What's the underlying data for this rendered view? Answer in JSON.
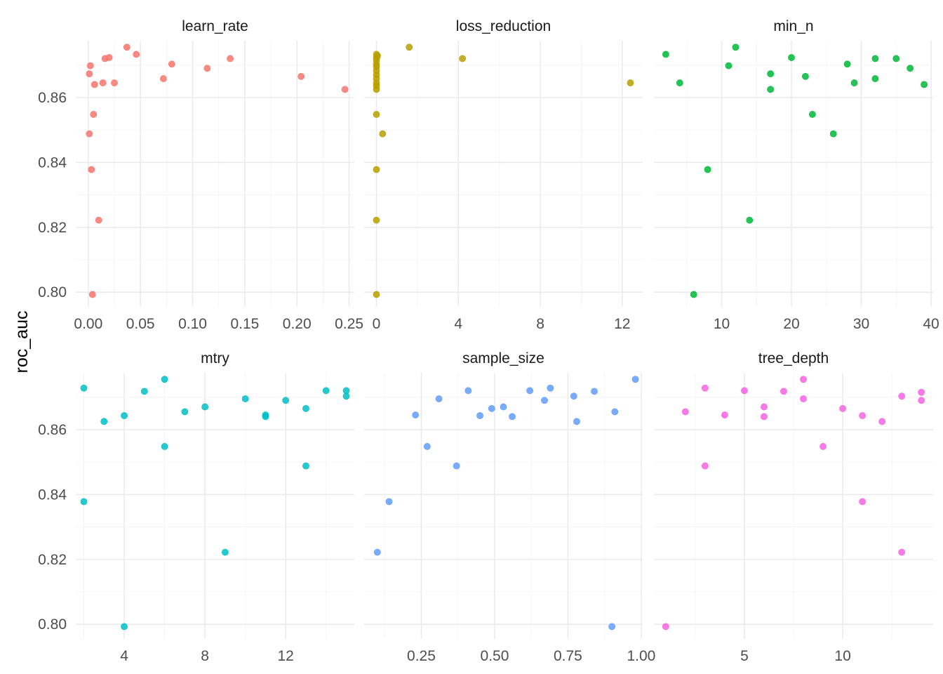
{
  "chart_data": {
    "type": "scatter",
    "ylabel": "roc_auc",
    "y_ticks": [
      "0.80",
      "0.82",
      "0.84",
      "0.86"
    ],
    "y_tick_values": [
      0.8,
      0.82,
      0.84,
      0.86
    ],
    "ylim": [
      0.7955,
      0.8775
    ],
    "grid": true,
    "legend": "none",
    "panels": [
      {
        "name": "learn_rate",
        "color": "#F8766D",
        "xlim": [
          -0.012,
          0.255
        ],
        "x_ticks": [
          "0.00",
          "0.05",
          "0.10",
          "0.15",
          "0.20",
          "0.25"
        ],
        "x_tick_values": [
          0,
          0.05,
          0.1,
          0.15,
          0.2,
          0.25
        ],
        "points": [
          {
            "x": 0.001,
            "y": 0.8673
          },
          {
            "x": 0.002,
            "y": 0.8698
          },
          {
            "x": 0.001,
            "y": 0.8488
          },
          {
            "x": 0.003,
            "y": 0.8378
          },
          {
            "x": 0.004,
            "y": 0.7993
          },
          {
            "x": 0.005,
            "y": 0.8548
          },
          {
            "x": 0.006,
            "y": 0.864
          },
          {
            "x": 0.01,
            "y": 0.8222
          },
          {
            "x": 0.014,
            "y": 0.8645
          },
          {
            "x": 0.016,
            "y": 0.872
          },
          {
            "x": 0.02,
            "y": 0.8723
          },
          {
            "x": 0.025,
            "y": 0.8645
          },
          {
            "x": 0.037,
            "y": 0.8755
          },
          {
            "x": 0.046,
            "y": 0.8733
          },
          {
            "x": 0.072,
            "y": 0.8658
          },
          {
            "x": 0.08,
            "y": 0.8703
          },
          {
            "x": 0.114,
            "y": 0.869
          },
          {
            "x": 0.136,
            "y": 0.872
          },
          {
            "x": 0.204,
            "y": 0.8665
          },
          {
            "x": 0.246,
            "y": 0.8625
          }
        ]
      },
      {
        "name": "loss_reduction",
        "color": "#B79F00",
        "xlim": [
          -0.6,
          13.0
        ],
        "x_ticks": [
          "0",
          "4",
          "8",
          "12"
        ],
        "x_tick_values": [
          0,
          4,
          8,
          12
        ],
        "points": [
          {
            "x": 0.0,
            "y": 0.8733
          },
          {
            "x": 0.0,
            "y": 0.8723
          },
          {
            "x": 0.0,
            "y": 0.8715
          },
          {
            "x": 0.0,
            "y": 0.8703
          },
          {
            "x": 0.0,
            "y": 0.8695
          },
          {
            "x": 0.0,
            "y": 0.8683
          },
          {
            "x": 0.0,
            "y": 0.867
          },
          {
            "x": 0.0,
            "y": 0.8658
          },
          {
            "x": 0.0,
            "y": 0.8645
          },
          {
            "x": 0.0,
            "y": 0.8636
          },
          {
            "x": 0.0,
            "y": 0.8625
          },
          {
            "x": 0.0,
            "y": 0.8548
          },
          {
            "x": 0.0,
            "y": 0.8378
          },
          {
            "x": 0.0,
            "y": 0.8222
          },
          {
            "x": 0.0,
            "y": 0.7993
          },
          {
            "x": 0.05,
            "y": 0.8728
          },
          {
            "x": 0.3,
            "y": 0.8488
          },
          {
            "x": 1.6,
            "y": 0.8755
          },
          {
            "x": 4.2,
            "y": 0.872
          },
          {
            "x": 12.4,
            "y": 0.8645
          }
        ]
      },
      {
        "name": "min_n",
        "color": "#00BA38",
        "xlim": [
          0.3,
          40.3
        ],
        "x_ticks": [
          "10",
          "20",
          "30",
          "40"
        ],
        "x_tick_values": [
          10,
          20,
          30,
          40
        ],
        "points": [
          {
            "x": 2,
            "y": 0.8733
          },
          {
            "x": 4,
            "y": 0.8645
          },
          {
            "x": 6,
            "y": 0.7993
          },
          {
            "x": 8,
            "y": 0.8378
          },
          {
            "x": 11,
            "y": 0.8698
          },
          {
            "x": 12,
            "y": 0.8755
          },
          {
            "x": 14,
            "y": 0.8222
          },
          {
            "x": 17,
            "y": 0.8673
          },
          {
            "x": 17,
            "y": 0.8625
          },
          {
            "x": 20,
            "y": 0.8723
          },
          {
            "x": 22,
            "y": 0.8665
          },
          {
            "x": 23,
            "y": 0.8548
          },
          {
            "x": 26,
            "y": 0.8488
          },
          {
            "x": 28,
            "y": 0.8703
          },
          {
            "x": 29,
            "y": 0.8645
          },
          {
            "x": 32,
            "y": 0.872
          },
          {
            "x": 32,
            "y": 0.8658
          },
          {
            "x": 35,
            "y": 0.872
          },
          {
            "x": 37,
            "y": 0.869
          },
          {
            "x": 39,
            "y": 0.864
          }
        ]
      },
      {
        "name": "mtry",
        "color": "#00BFC4",
        "xlim": [
          1.6,
          15.4
        ],
        "x_ticks": [
          "4",
          "8",
          "12"
        ],
        "x_tick_values": [
          4,
          8,
          12
        ],
        "points": [
          {
            "x": 2,
            "y": 0.8728
          },
          {
            "x": 2,
            "y": 0.8378
          },
          {
            "x": 3,
            "y": 0.8625
          },
          {
            "x": 4,
            "y": 0.8643
          },
          {
            "x": 4,
            "y": 0.7993
          },
          {
            "x": 5,
            "y": 0.8718
          },
          {
            "x": 6,
            "y": 0.8755
          },
          {
            "x": 6,
            "y": 0.8548
          },
          {
            "x": 7,
            "y": 0.8655
          },
          {
            "x": 8,
            "y": 0.867
          },
          {
            "x": 9,
            "y": 0.8222
          },
          {
            "x": 10,
            "y": 0.8695
          },
          {
            "x": 11,
            "y": 0.8645
          },
          {
            "x": 11,
            "y": 0.864
          },
          {
            "x": 12,
            "y": 0.869
          },
          {
            "x": 13,
            "y": 0.8665
          },
          {
            "x": 13,
            "y": 0.8488
          },
          {
            "x": 14,
            "y": 0.872
          },
          {
            "x": 15,
            "y": 0.872
          },
          {
            "x": 15,
            "y": 0.8703
          }
        ]
      },
      {
        "name": "sample_size",
        "color": "#619CFF",
        "xlim": [
          0.055,
          1.005
        ],
        "x_ticks": [
          "0.25",
          "0.50",
          "0.75",
          "1.00"
        ],
        "x_tick_values": [
          0.25,
          0.5,
          0.75,
          1.0
        ],
        "points": [
          {
            "x": 0.1,
            "y": 0.8222
          },
          {
            "x": 0.14,
            "y": 0.8378
          },
          {
            "x": 0.23,
            "y": 0.8645
          },
          {
            "x": 0.27,
            "y": 0.8548
          },
          {
            "x": 0.31,
            "y": 0.8695
          },
          {
            "x": 0.37,
            "y": 0.8488
          },
          {
            "x": 0.41,
            "y": 0.872
          },
          {
            "x": 0.45,
            "y": 0.8643
          },
          {
            "x": 0.49,
            "y": 0.8665
          },
          {
            "x": 0.53,
            "y": 0.867
          },
          {
            "x": 0.56,
            "y": 0.864
          },
          {
            "x": 0.62,
            "y": 0.872
          },
          {
            "x": 0.67,
            "y": 0.869
          },
          {
            "x": 0.69,
            "y": 0.8728
          },
          {
            "x": 0.77,
            "y": 0.8703
          },
          {
            "x": 0.78,
            "y": 0.8625
          },
          {
            "x": 0.84,
            "y": 0.8718
          },
          {
            "x": 0.9,
            "y": 0.7993
          },
          {
            "x": 0.91,
            "y": 0.8655
          },
          {
            "x": 0.98,
            "y": 0.8755
          }
        ]
      },
      {
        "name": "tree_depth",
        "color": "#F564E3",
        "xlim": [
          0.4,
          14.6
        ],
        "x_ticks": [
          "5",
          "10"
        ],
        "x_tick_values": [
          5,
          10
        ],
        "points": [
          {
            "x": 1,
            "y": 0.7993
          },
          {
            "x": 2,
            "y": 0.8655
          },
          {
            "x": 3,
            "y": 0.8728
          },
          {
            "x": 3,
            "y": 0.8488
          },
          {
            "x": 4,
            "y": 0.8645
          },
          {
            "x": 5,
            "y": 0.872
          },
          {
            "x": 6,
            "y": 0.867
          },
          {
            "x": 6,
            "y": 0.864
          },
          {
            "x": 7,
            "y": 0.8718
          },
          {
            "x": 8,
            "y": 0.8755
          },
          {
            "x": 8,
            "y": 0.8695
          },
          {
            "x": 9,
            "y": 0.8548
          },
          {
            "x": 10,
            "y": 0.8665
          },
          {
            "x": 11,
            "y": 0.8643
          },
          {
            "x": 11,
            "y": 0.8378
          },
          {
            "x": 12,
            "y": 0.8625
          },
          {
            "x": 13,
            "y": 0.8703
          },
          {
            "x": 13,
            "y": 0.8222
          },
          {
            "x": 14,
            "y": 0.8715
          },
          {
            "x": 14,
            "y": 0.869
          }
        ]
      }
    ]
  }
}
